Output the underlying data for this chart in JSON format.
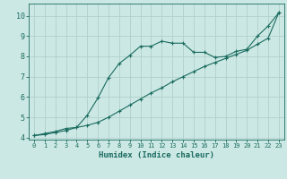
{
  "xlabel": "Humidex (Indice chaleur)",
  "background_color": "#cce8e4",
  "grid_color": "#b0d0cc",
  "line_color": "#1a6b5f",
  "xlim": [
    -0.5,
    23.5
  ],
  "ylim": [
    3.9,
    10.6
  ],
  "xticks": [
    0,
    1,
    2,
    3,
    4,
    5,
    6,
    7,
    8,
    9,
    10,
    11,
    12,
    13,
    14,
    15,
    16,
    17,
    18,
    19,
    20,
    21,
    22,
    23
  ],
  "yticks": [
    4,
    5,
    6,
    7,
    8,
    9,
    10
  ],
  "series1_x": [
    0,
    1,
    2,
    3,
    4,
    5,
    6,
    7,
    8,
    9,
    10,
    11,
    12,
    13,
    14,
    15,
    16,
    17,
    18,
    19,
    20,
    21,
    22,
    23
  ],
  "series1_y": [
    4.1,
    4.2,
    4.3,
    4.45,
    4.5,
    5.1,
    5.95,
    6.95,
    7.65,
    8.05,
    8.5,
    8.5,
    8.75,
    8.65,
    8.65,
    8.2,
    8.2,
    7.95,
    8.0,
    8.25,
    8.35,
    9.0,
    9.5,
    10.15
  ],
  "series2_x": [
    0,
    1,
    2,
    3,
    4,
    5,
    6,
    7,
    8,
    9,
    10,
    11,
    12,
    13,
    14,
    15,
    16,
    17,
    18,
    19,
    20,
    21,
    22,
    23
  ],
  "series2_y": [
    4.1,
    4.15,
    4.25,
    4.35,
    4.5,
    4.6,
    4.75,
    5.0,
    5.3,
    5.6,
    5.9,
    6.2,
    6.45,
    6.75,
    7.0,
    7.25,
    7.5,
    7.7,
    7.9,
    8.1,
    8.3,
    8.6,
    8.9,
    10.15
  ]
}
